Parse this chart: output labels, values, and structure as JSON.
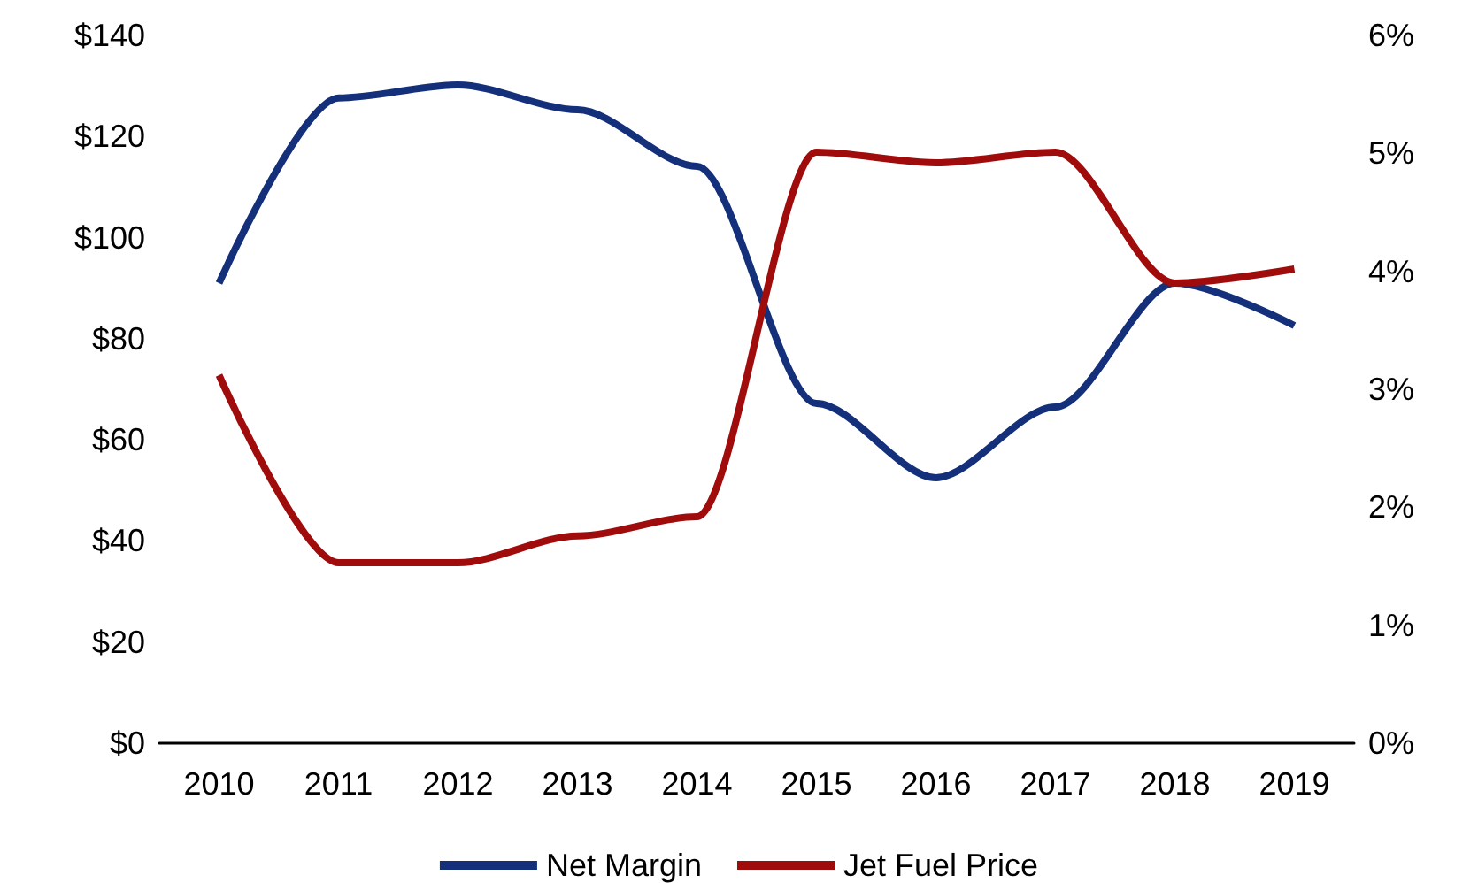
{
  "chart_data": {
    "type": "line",
    "categories": [
      "2010",
      "2011",
      "2012",
      "2013",
      "2014",
      "2015",
      "2016",
      "2017",
      "2018",
      "2019"
    ],
    "series": [
      {
        "name": "Net Margin",
        "color": "#14307a",
        "axis": "y2",
        "values": [
          3.9,
          5.47,
          5.58,
          5.37,
          4.89,
          2.88,
          2.25,
          2.85,
          3.9,
          3.54
        ]
      },
      {
        "name": "Jet Fuel Price",
        "color": "#a00c0c",
        "values": [
          72.8,
          35.7,
          35.7,
          41,
          44.8,
          116.9,
          114.8,
          116.9,
          91,
          93.8
        ]
      }
    ],
    "ylim": [
      0,
      140
    ],
    "yticks": [
      {
        "value": 0,
        "label": "$0"
      },
      {
        "value": 20,
        "label": "$20"
      },
      {
        "value": 40,
        "label": "$40"
      },
      {
        "value": 60,
        "label": "$60"
      },
      {
        "value": 80,
        "label": "$80"
      },
      {
        "value": 100,
        "label": "$100"
      },
      {
        "value": 120,
        "label": "$120"
      },
      {
        "value": 140,
        "label": "$140"
      }
    ],
    "y2lim": [
      0,
      6
    ],
    "y2ticks": [
      {
        "value": 0,
        "label": "0%"
      },
      {
        "value": 1,
        "label": "1%"
      },
      {
        "value": 2,
        "label": "2%"
      },
      {
        "value": 3,
        "label": "3%"
      },
      {
        "value": 4,
        "label": "4%"
      },
      {
        "value": 5,
        "label": "5%"
      },
      {
        "value": 6,
        "label": "6%"
      }
    ],
    "grid": false,
    "legend": "bottom",
    "marker": "none",
    "line_style": "solid"
  }
}
